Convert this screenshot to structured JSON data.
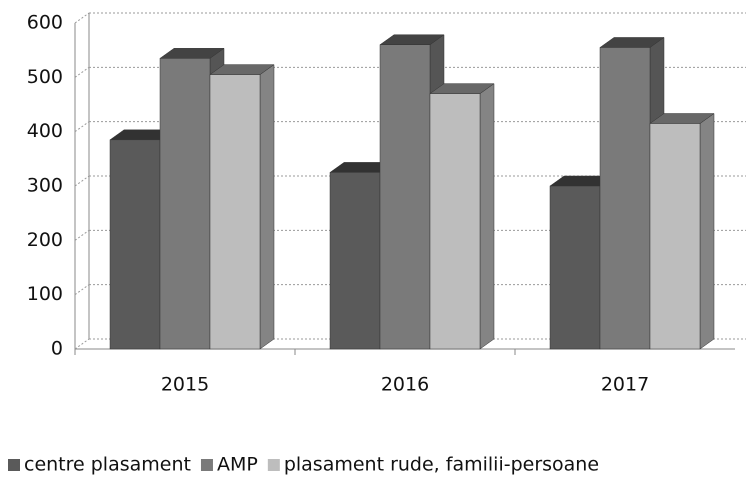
{
  "chart_data": {
    "type": "bar3d",
    "categories": [
      "2015",
      "2016",
      "2017"
    ],
    "series": [
      {
        "name": "centre plasament",
        "color": "#5a5a5a",
        "values": [
          385,
          325,
          300
        ]
      },
      {
        "name": "AMP",
        "color": "#7a7a7a",
        "values": [
          535,
          560,
          555
        ]
      },
      {
        "name": "plasament rude, familii-persoane",
        "color": "#bdbdbd",
        "values": [
          505,
          470,
          415
        ]
      }
    ],
    "ylim": [
      0,
      600
    ],
    "yticks": [
      0,
      100,
      200,
      300,
      400,
      500,
      600
    ],
    "grid": true,
    "legend": "bottom"
  }
}
